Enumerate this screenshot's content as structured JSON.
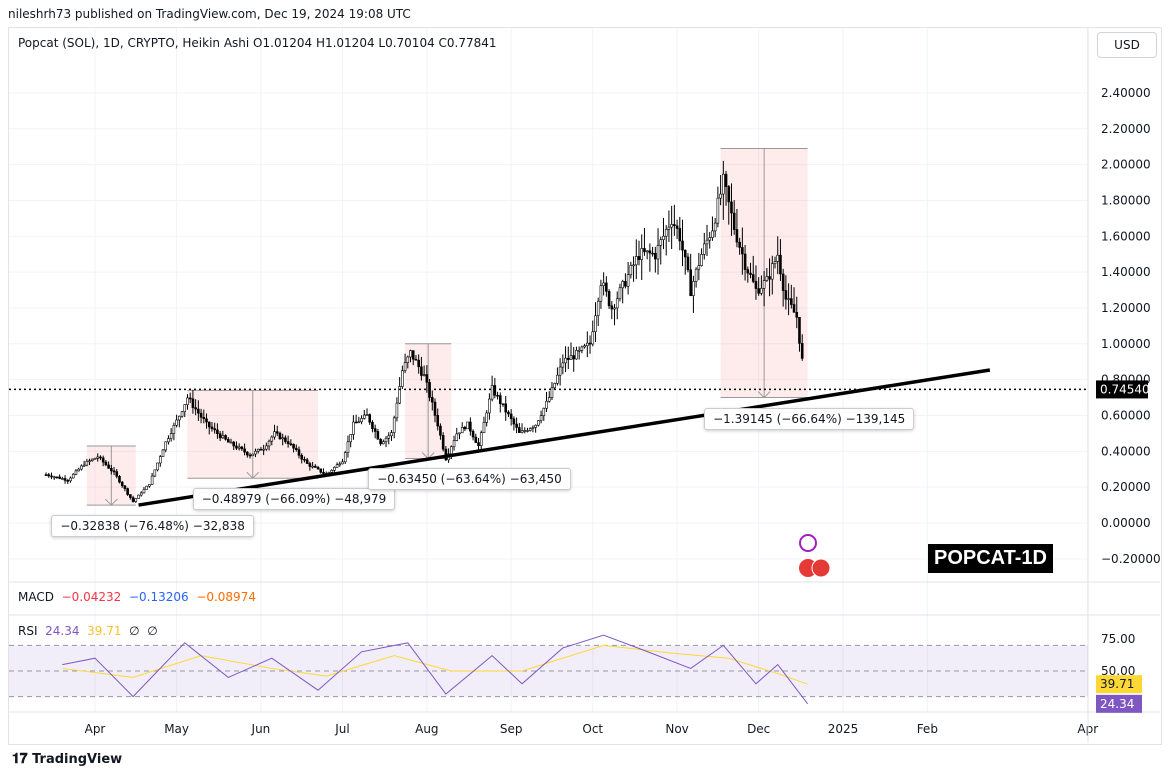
{
  "header": {
    "published": "nileshrh73 published on TradingView.com, Dec 19, 2024 19:08 UTC",
    "legend": "Popcat (SOL), 1D, CRYPTO, Heikin Ashi  O1.01204  H1.01204  L0.70104  C0.77841"
  },
  "currency": "USD",
  "watermark": "POPCAT-1D",
  "macd": {
    "label": "MACD",
    "v1": "−0.04232",
    "v2": "−0.13206",
    "v3": "−0.08974",
    "c1": "#f23645",
    "c2": "#2962ff",
    "c3": "#ff6d00"
  },
  "rsi": {
    "label": "RSI",
    "v1": "24.34",
    "v2": "39.71",
    "v3": "∅",
    "v4": "∅",
    "c1": "#7e57c2",
    "c2": "#fdd835"
  },
  "footer": {
    "brand": "TradingView"
  },
  "chart_data": {
    "type": "candlestick-heikin-ashi",
    "ylim": [
      -0.25,
      2.55
    ],
    "y_ticks": [
      "2.40000",
      "2.20000",
      "2.00000",
      "1.80000",
      "1.60000",
      "1.40000",
      "1.20000",
      "1.00000",
      "0.80000",
      "0.60000",
      "0.40000",
      "0.20000",
      "0.00000",
      "−0.20000"
    ],
    "y_tick_values": [
      2.4,
      2.2,
      2.0,
      1.8,
      1.6,
      1.4,
      1.2,
      1.0,
      0.8,
      0.6,
      0.4,
      0.2,
      0.0,
      -0.2
    ],
    "x_ticks": [
      {
        "label": "Apr",
        "date": "2024-04-01"
      },
      {
        "label": "May",
        "date": "2024-05-01"
      },
      {
        "label": "Jun",
        "date": "2024-06-01"
      },
      {
        "label": "Jul",
        "date": "2024-07-01"
      },
      {
        "label": "Aug",
        "date": "2024-08-01"
      },
      {
        "label": "Sep",
        "date": "2024-09-01"
      },
      {
        "label": "Oct",
        "date": "2024-10-01"
      },
      {
        "label": "Nov",
        "date": "2024-11-01"
      },
      {
        "label": "Dec",
        "date": "2024-12-01"
      },
      {
        "label": "2025",
        "date": "2025-01-01"
      },
      {
        "label": "Feb",
        "date": "2025-02-01"
      },
      {
        "label": "Apr",
        "date": "2025-04-01"
      }
    ],
    "last_price": {
      "value": 0.7454,
      "label": "0.74540"
    },
    "close_series": [
      [
        "2024-03-14",
        0.27
      ],
      [
        "2024-03-22",
        0.24
      ],
      [
        "2024-03-28",
        0.33
      ],
      [
        "2024-04-02",
        0.37
      ],
      [
        "2024-04-08",
        0.28
      ],
      [
        "2024-04-15",
        0.12
      ],
      [
        "2024-04-21",
        0.22
      ],
      [
        "2024-04-27",
        0.45
      ],
      [
        "2024-05-02",
        0.6
      ],
      [
        "2024-05-05",
        0.7
      ],
      [
        "2024-05-12",
        0.55
      ],
      [
        "2024-05-20",
        0.45
      ],
      [
        "2024-05-28",
        0.38
      ],
      [
        "2024-06-02",
        0.42
      ],
      [
        "2024-06-06",
        0.5
      ],
      [
        "2024-06-11",
        0.45
      ],
      [
        "2024-06-18",
        0.33
      ],
      [
        "2024-06-25",
        0.27
      ],
      [
        "2024-07-01",
        0.35
      ],
      [
        "2024-07-05",
        0.55
      ],
      [
        "2024-07-10",
        0.6
      ],
      [
        "2024-07-15",
        0.45
      ],
      [
        "2024-07-19",
        0.5
      ],
      [
        "2024-07-23",
        0.85
      ],
      [
        "2024-07-26",
        0.95
      ],
      [
        "2024-07-31",
        0.82
      ],
      [
        "2024-08-05",
        0.55
      ],
      [
        "2024-08-08",
        0.36
      ],
      [
        "2024-08-12",
        0.5
      ],
      [
        "2024-08-16",
        0.55
      ],
      [
        "2024-08-20",
        0.43
      ],
      [
        "2024-08-25",
        0.75
      ],
      [
        "2024-08-29",
        0.65
      ],
      [
        "2024-09-04",
        0.5
      ],
      [
        "2024-09-10",
        0.55
      ],
      [
        "2024-09-15",
        0.7
      ],
      [
        "2024-09-20",
        0.9
      ],
      [
        "2024-09-26",
        0.95
      ],
      [
        "2024-09-30",
        1.0
      ],
      [
        "2024-10-04",
        1.35
      ],
      [
        "2024-10-08",
        1.2
      ],
      [
        "2024-10-13",
        1.35
      ],
      [
        "2024-10-18",
        1.5
      ],
      [
        "2024-10-24",
        1.5
      ],
      [
        "2024-10-30",
        1.7
      ],
      [
        "2024-11-02",
        1.6
      ],
      [
        "2024-11-06",
        1.3
      ],
      [
        "2024-11-10",
        1.5
      ],
      [
        "2024-11-14",
        1.65
      ],
      [
        "2024-11-18",
        1.9
      ],
      [
        "2024-11-22",
        1.65
      ],
      [
        "2024-11-26",
        1.45
      ],
      [
        "2024-11-30",
        1.3
      ],
      [
        "2024-12-04",
        1.35
      ],
      [
        "2024-12-08",
        1.5
      ],
      [
        "2024-12-11",
        1.25
      ],
      [
        "2024-12-15",
        1.15
      ],
      [
        "2024-12-18",
        0.78
      ]
    ],
    "trendline": [
      [
        "2024-04-17",
        0.1
      ],
      [
        "2025-02-24",
        0.854
      ]
    ],
    "measurements": [
      {
        "start": "2024-03-29",
        "end": "2024-04-16",
        "high": 0.43,
        "low": 0.1,
        "label": "−0.32838 (−76.48%) −32,838"
      },
      {
        "start": "2024-05-05",
        "end": "2024-06-22",
        "high": 0.74,
        "low": 0.25,
        "label": "−0.48979 (−66.09%) −48,979"
      },
      {
        "start": "2024-07-24",
        "end": "2024-08-10",
        "high": 1.0,
        "low": 0.36,
        "label": "−0.63450 (−63.64%) −63,450"
      },
      {
        "start": "2024-11-17",
        "end": "2024-12-19",
        "high": 2.09,
        "low": 0.7,
        "label": "−1.39145 (−66.64%) −139,145"
      }
    ],
    "rsi_panel": {
      "ticks": [
        "75.00",
        "50.00"
      ],
      "band": [
        30,
        70
      ],
      "rsi_last": "24.34",
      "ma_last": "39.71",
      "rsi_series": [
        [
          "2024-03-20",
          55
        ],
        [
          "2024-04-01",
          60
        ],
        [
          "2024-04-15",
          30
        ],
        [
          "2024-05-04",
          72
        ],
        [
          "2024-05-20",
          45
        ],
        [
          "2024-06-05",
          60
        ],
        [
          "2024-06-22",
          35
        ],
        [
          "2024-07-08",
          65
        ],
        [
          "2024-07-25",
          72
        ],
        [
          "2024-08-08",
          32
        ],
        [
          "2024-08-25",
          62
        ],
        [
          "2024-09-05",
          40
        ],
        [
          "2024-09-20",
          68
        ],
        [
          "2024-10-05",
          78
        ],
        [
          "2024-10-20",
          66
        ],
        [
          "2024-11-06",
          52
        ],
        [
          "2024-11-18",
          70
        ],
        [
          "2024-11-30",
          40
        ],
        [
          "2024-12-08",
          55
        ],
        [
          "2024-12-19",
          24.34
        ]
      ],
      "ma_series": [
        [
          "2024-03-20",
          52
        ],
        [
          "2024-04-15",
          45
        ],
        [
          "2024-05-10",
          62
        ],
        [
          "2024-06-05",
          52
        ],
        [
          "2024-06-25",
          46
        ],
        [
          "2024-07-20",
          62
        ],
        [
          "2024-08-10",
          50
        ],
        [
          "2024-09-05",
          50
        ],
        [
          "2024-10-05",
          70
        ],
        [
          "2024-10-30",
          64
        ],
        [
          "2024-11-20",
          60
        ],
        [
          "2024-12-08",
          48
        ],
        [
          "2024-12-19",
          39.71
        ]
      ]
    }
  }
}
